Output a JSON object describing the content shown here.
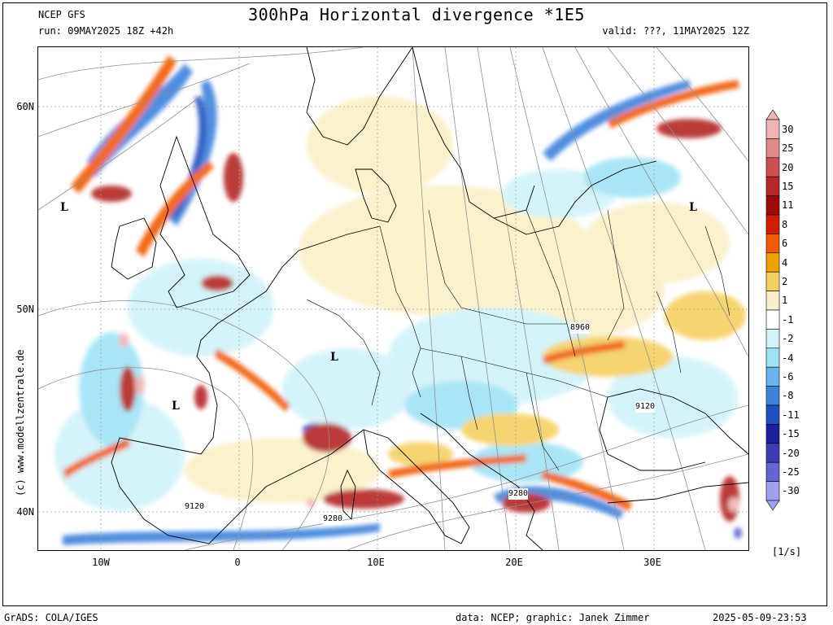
{
  "header": {
    "source": "NCEP GFS",
    "run": "run: 09MAY2025 18Z +42h",
    "title": "300hPa Horizontal divergence *1E5",
    "valid": "valid: ???, 11MAY2025 12Z"
  },
  "watermark": "(c) www.modellzentrale.de",
  "axes": {
    "lat_labels": [
      "60N",
      "50N",
      "40N"
    ],
    "lon_labels": [
      "10W",
      "0",
      "10E",
      "20E",
      "30E"
    ]
  },
  "colorbar": {
    "unit": "[1/s]",
    "levels": [
      {
        "label": "30",
        "color": "#f0b4b4"
      },
      {
        "label": "25",
        "color": "#e08a8a"
      },
      {
        "label": "20",
        "color": "#cc5050"
      },
      {
        "label": "15",
        "color": "#b42828"
      },
      {
        "label": "11",
        "color": "#9c0a0a"
      },
      {
        "label": "8",
        "color": "#d21e00"
      },
      {
        "label": "6",
        "color": "#f05a00"
      },
      {
        "label": "4",
        "color": "#f0a000"
      },
      {
        "label": "2",
        "color": "#f5d064"
      },
      {
        "label": "1",
        "color": "#faf0c8"
      },
      {
        "label": "-1",
        "color": "#ffffff"
      },
      {
        "label": "-2",
        "color": "#d0f2f8"
      },
      {
        "label": "-4",
        "color": "#a0e4f4"
      },
      {
        "label": "-6",
        "color": "#6ab4f0"
      },
      {
        "label": "-8",
        "color": "#3c82dc"
      },
      {
        "label": "-11",
        "color": "#1e50be"
      },
      {
        "label": "-15",
        "color": "#1e1ea0"
      },
      {
        "label": "-20",
        "color": "#3c3cb4"
      },
      {
        "label": "-25",
        "color": "#6464d2"
      },
      {
        "label": "-30",
        "color": "#a0a0f0"
      }
    ]
  },
  "map_labels": {
    "lows": [
      "L",
      "L",
      "L",
      "L"
    ],
    "contours": [
      "8960",
      "9120",
      "9120",
      "9280",
      "9280"
    ]
  },
  "footer": {
    "left": "GrADS: COLA/IGES",
    "credit": "data: NCEP; graphic: Janek Zimmer",
    "timestamp": "2025-05-09-23:53"
  }
}
